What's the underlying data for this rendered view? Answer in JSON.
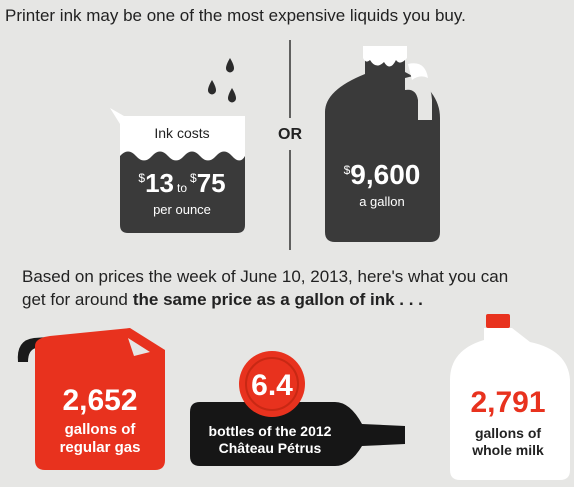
{
  "header": {
    "title": "Printer ink may be one of the most expensive liquids you buy."
  },
  "ink": {
    "label": "Ink costs",
    "currency_low": "$",
    "low": "13",
    "connector": "to",
    "currency_high": "$",
    "high": "75",
    "unit": "per ounce"
  },
  "separator": "OR",
  "gallon": {
    "currency": "$",
    "price": "9,600",
    "unit": "a gallon"
  },
  "intro": {
    "line1": "Based on prices the week of June 10, 2013, here's what you can",
    "line2": "get for around",
    "emphasis": "the same price as a gallon of ink . . ."
  },
  "items": [
    {
      "amount": "2,652",
      "label_lines": [
        "gallons of",
        "regular gas"
      ]
    },
    {
      "amount": "6.4",
      "label_lines": [
        "bottles of the 2012",
        "Château Pétrus"
      ]
    },
    {
      "amount": "2,791",
      "label_lines": [
        "gallons of",
        "whole milk"
      ]
    }
  ]
}
